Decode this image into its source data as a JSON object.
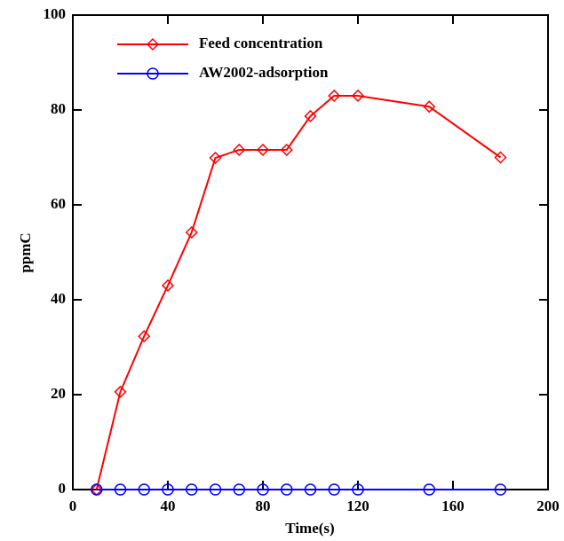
{
  "chart_data": {
    "type": "line",
    "xlabel": "Time(s)",
    "ylabel": "ppmC",
    "xlim": [
      0,
      200
    ],
    "xticks": [
      0,
      40,
      80,
      120,
      160,
      200
    ],
    "ylim": [
      0,
      100
    ],
    "yticks": [
      0,
      20,
      40,
      60,
      80,
      100
    ],
    "legend": "upper left",
    "series": [
      {
        "name": "Feed concentration",
        "color": "#ff0000",
        "marker": "diamond",
        "x": [
          10,
          20,
          30,
          40,
          50,
          60,
          70,
          80,
          90,
          100,
          110,
          120,
          150,
          180
        ],
        "values": [
          0,
          20.6,
          32.3,
          43,
          54.2,
          69.9,
          71.6,
          71.6,
          71.6,
          78.7,
          83,
          83,
          80.7,
          70
        ]
      },
      {
        "name": "AW2002-adsorption",
        "color": "#0000ff",
        "marker": "circle",
        "x": [
          10,
          20,
          30,
          40,
          50,
          60,
          70,
          80,
          90,
          100,
          110,
          120,
          150,
          180
        ],
        "values": [
          0,
          0,
          0,
          0,
          0,
          0,
          0,
          0,
          0,
          0,
          0,
          0,
          0,
          0
        ]
      }
    ]
  }
}
